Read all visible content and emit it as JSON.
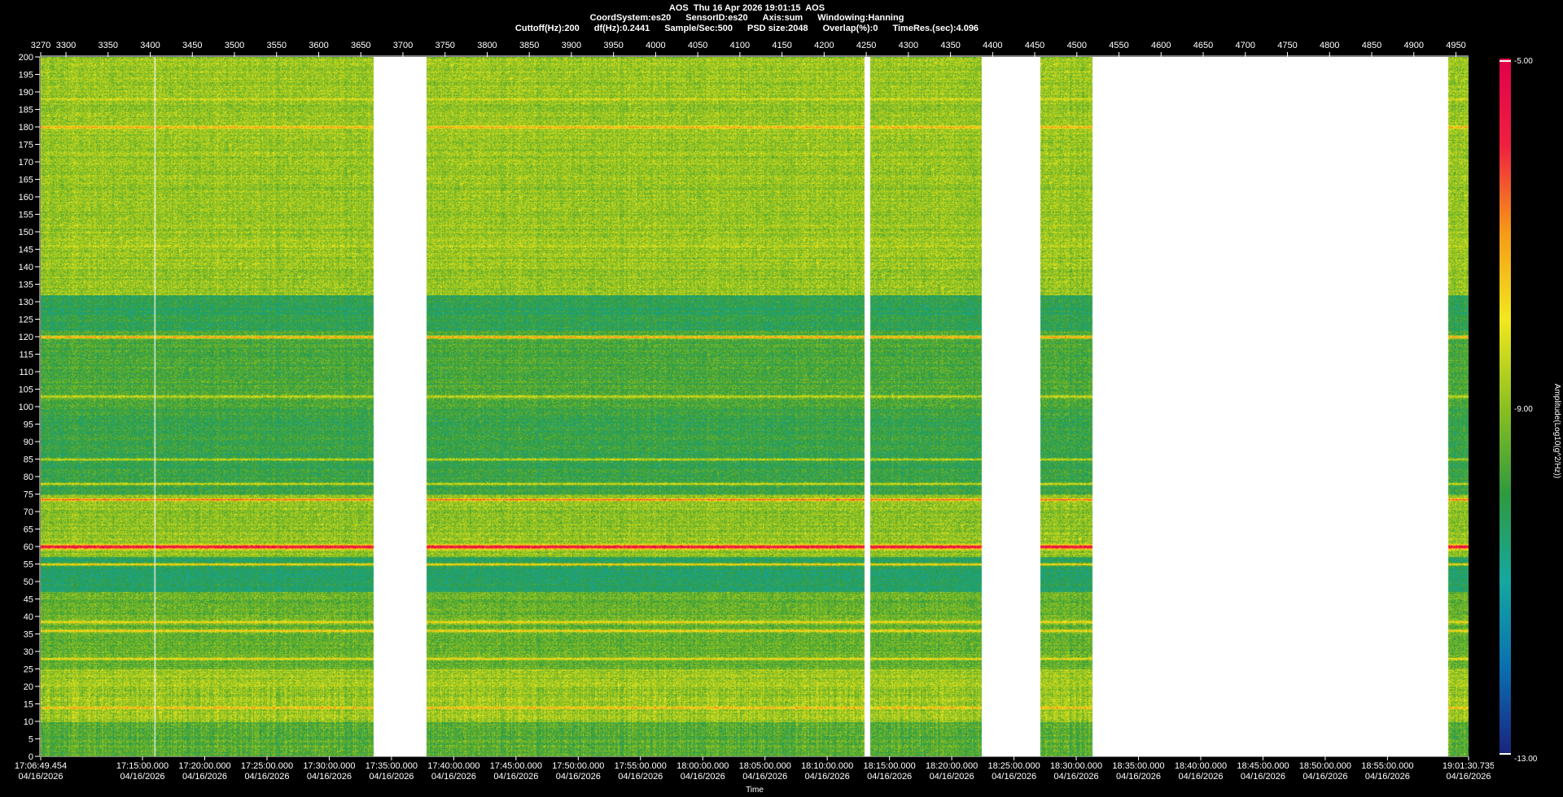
{
  "header": {
    "title": "AOS  Thu 16 Apr 2026 19:01:15  AOS",
    "line2": [
      "CoordSystem:es20",
      "SensorID:es20",
      "Axis:sum",
      "Windowing:Hanning"
    ],
    "line3": [
      "Cuttoff(Hz):200",
      "df(Hz):0.2441",
      "Sample/Sec:500",
      "PSD size:2048",
      "Overlap(%):0",
      "TimeRes.(sec):4.096"
    ]
  },
  "colorbar": {
    "label": "Amplitude(Log10(g^2/Hz))",
    "max_label": "-5.00",
    "mid_label": "-9.00",
    "min_label": "-13.00",
    "colors": [
      "#1a237e",
      "#0b6fb0",
      "#15a7a0",
      "#2f9a3e",
      "#8cc020",
      "#f2e81e",
      "#f59a18",
      "#f02040",
      "#e0004a"
    ]
  },
  "chart_data": {
    "type": "heatmap",
    "xlabel": "Time",
    "ylabel": "",
    "ylim": [
      0,
      200
    ],
    "y_ticks": [
      0,
      5,
      10,
      15,
      20,
      25,
      30,
      35,
      40,
      45,
      50,
      55,
      60,
      65,
      70,
      75,
      80,
      85,
      90,
      95,
      100,
      105,
      110,
      115,
      120,
      125,
      130,
      135,
      140,
      145,
      150,
      155,
      160,
      165,
      170,
      175,
      180,
      185,
      190,
      195,
      200
    ],
    "top_axis": {
      "range": [
        3270,
        4965
      ],
      "ticks": [
        3270,
        3300,
        3350,
        3400,
        3450,
        3500,
        3550,
        3600,
        3650,
        3700,
        3750,
        3800,
        3850,
        3900,
        3950,
        4000,
        4050,
        4100,
        4150,
        4200,
        4250,
        4300,
        4350,
        4400,
        4450,
        4500,
        4550,
        4600,
        4650,
        4700,
        4750,
        4800,
        4850,
        4900,
        4950
      ]
    },
    "time_axis": {
      "labels": [
        {
          "time": "17:06:49.454",
          "date": "04/16/2026"
        },
        {
          "time": "17:15:00.000",
          "date": "04/16/2026"
        },
        {
          "time": "17:20:00.000",
          "date": "04/16/2026"
        },
        {
          "time": "17:25:00.000",
          "date": "04/16/2026"
        },
        {
          "time": "17:30:00.000",
          "date": "04/16/2026"
        },
        {
          "time": "17:35:00.000",
          "date": "04/16/2026"
        },
        {
          "time": "17:40:00.000",
          "date": "04/16/2026"
        },
        {
          "time": "17:45:00.000",
          "date": "04/16/2026"
        },
        {
          "time": "17:50:00.000",
          "date": "04/16/2026"
        },
        {
          "time": "17:55:00.000",
          "date": "04/16/2026"
        },
        {
          "time": "18:00:00.000",
          "date": "04/16/2026"
        },
        {
          "time": "18:05:00.000",
          "date": "04/16/2026"
        },
        {
          "time": "18:10:00.000",
          "date": "04/16/2026"
        },
        {
          "time": "18:15:00.000",
          "date": "04/16/2026"
        },
        {
          "time": "18:20:00.000",
          "date": "04/16/2026"
        },
        {
          "time": "18:25:00.000",
          "date": "04/16/2026"
        },
        {
          "time": "18:30:00.000",
          "date": "04/16/2026"
        },
        {
          "time": "18:35:00.000",
          "date": "04/16/2026"
        },
        {
          "time": "18:40:00.000",
          "date": "04/16/2026"
        },
        {
          "time": "18:45:00.000",
          "date": "04/16/2026"
        },
        {
          "time": "18:50:00.000",
          "date": "04/16/2026"
        },
        {
          "time": "18:55:00.000",
          "date": "04/16/2026"
        },
        {
          "time": "19:01:30.735",
          "date": "04/16/2026"
        }
      ]
    },
    "value_range": [
      -13,
      -5
    ],
    "gaps_top_axis_units": [
      [
        3665,
        3728
      ],
      [
        4247,
        4254
      ],
      [
        4387,
        4456
      ],
      [
        4518,
        4940
      ]
    ],
    "strong_lines_hz": [
      {
        "hz": 60,
        "level": -5.4
      },
      {
        "hz": 73.5,
        "level": -6.5
      },
      {
        "hz": 120,
        "level": -7.0
      },
      {
        "hz": 180,
        "level": -7.2
      },
      {
        "hz": 14,
        "level": -7.3
      },
      {
        "hz": 55,
        "level": -7.5
      },
      {
        "hz": 36,
        "level": -7.6
      },
      {
        "hz": 38.5,
        "level": -7.8
      },
      {
        "hz": 28,
        "level": -7.8
      },
      {
        "hz": 78,
        "level": -8.2
      },
      {
        "hz": 85,
        "level": -8.4
      },
      {
        "hz": 103,
        "level": -8.3
      },
      {
        "hz": 146,
        "level": -8.5
      },
      {
        "hz": 188,
        "level": -8.2
      },
      {
        "hz": 164,
        "level": -8.8
      },
      {
        "hz": 194,
        "level": -8.8
      }
    ],
    "background_bands_hz": [
      {
        "from": 0,
        "to": 10,
        "level": -9.6
      },
      {
        "from": 10,
        "to": 25,
        "level": -8.8
      },
      {
        "from": 25,
        "to": 47,
        "level": -9.4
      },
      {
        "from": 47,
        "to": 57,
        "level": -10.4
      },
      {
        "from": 57,
        "to": 75,
        "level": -9.0
      },
      {
        "from": 75,
        "to": 100,
        "level": -10.0
      },
      {
        "from": 100,
        "to": 122,
        "level": -9.7
      },
      {
        "from": 122,
        "to": 132,
        "level": -10.2
      },
      {
        "from": 132,
        "to": 200,
        "level": -8.9
      }
    ]
  }
}
